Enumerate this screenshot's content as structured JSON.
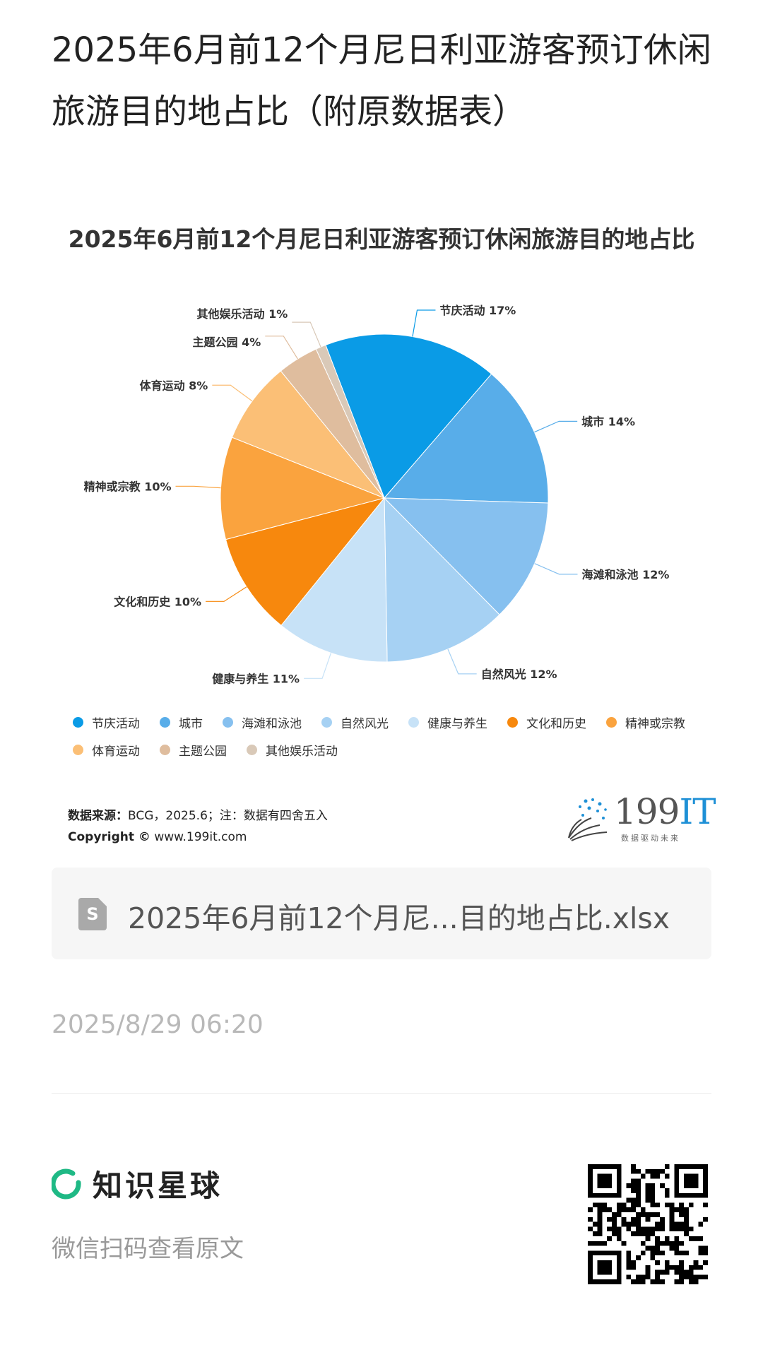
{
  "page": {
    "title": "2025年6月前12个月尼日利亚游客预订休闲旅游目的地占比（附原数据表）"
  },
  "chart_data": {
    "type": "pie",
    "title": "2025年6月前12个月尼日利亚游客预订休闲旅游目的地占比",
    "legend_position": "bottom",
    "slices": [
      {
        "label": "节庆活动",
        "value": 17,
        "display": "节庆活动 17%",
        "color": "#0a9be6"
      },
      {
        "label": "城市",
        "value": 14,
        "display": "城市 14%",
        "color": "#58ade9"
      },
      {
        "label": "海滩和泳池",
        "value": 12,
        "display": "海滩和泳池 12%",
        "color": "#86c0ef"
      },
      {
        "label": "自然风光",
        "value": 12,
        "display": "自然风光 12%",
        "color": "#a6d1f3"
      },
      {
        "label": "健康与养生",
        "value": 11,
        "display": "健康与养生 11%",
        "color": "#c7e2f7"
      },
      {
        "label": "文化和历史",
        "value": 10,
        "display": "文化和历史 10%",
        "color": "#f7880d"
      },
      {
        "label": "精神或宗教",
        "value": 10,
        "display": "精神或宗教 10%",
        "color": "#faa33e"
      },
      {
        "label": "体育运动",
        "value": 8,
        "display": "体育运动 8%",
        "color": "#fbbf76"
      },
      {
        "label": "主题公园",
        "value": 4,
        "display": "主题公园 4%",
        "color": "#dfbd9e"
      },
      {
        "label": "其他娱乐活动",
        "value": 1,
        "display": "其他娱乐活动 1%",
        "color": "#d9c9b8"
      }
    ]
  },
  "source": {
    "label": "数据来源：",
    "text": "BCG，2025.6；注：数据有四舍五入",
    "copyright_label": "Copyright ©",
    "copyright_url": "www.199it.com"
  },
  "logo": {
    "num": "199",
    "it": "IT",
    "tagline": "数据驱动未来"
  },
  "file": {
    "icon_letter": "S",
    "name": "2025年6月前12个月尼...目的地占比.xlsx"
  },
  "timestamp": "2025/8/29 06:20",
  "footer": {
    "brand": "知识星球",
    "subtitle": "微信扫码查看原文",
    "brand_color": "#1fb985"
  }
}
